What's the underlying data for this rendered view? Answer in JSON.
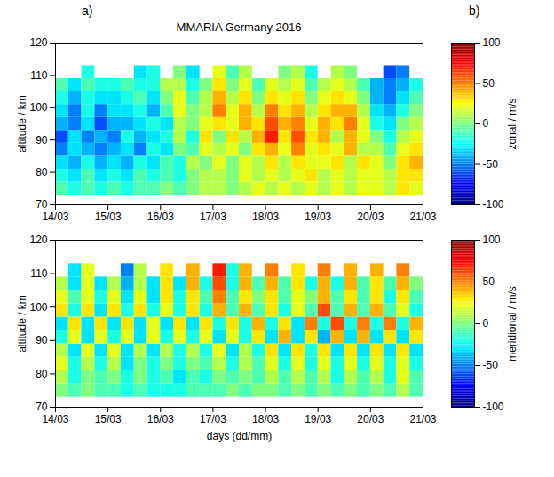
{
  "chart_data": [
    {
      "type": "heatmap",
      "title": "MMARIA Germany 2016",
      "annotations": [
        "a)",
        "b)"
      ],
      "ylabel": "altitude / km",
      "xlim": [
        14,
        21
      ],
      "xticks": [
        {
          "value": 14,
          "label": "14/03"
        },
        {
          "value": 15,
          "label": "15/03"
        },
        {
          "value": 16,
          "label": "16/03"
        },
        {
          "value": 17,
          "label": "17/03"
        },
        {
          "value": 18,
          "label": "18/03"
        },
        {
          "value": 19,
          "label": "19/03"
        },
        {
          "value": 20,
          "label": "20/03"
        },
        {
          "value": 21,
          "label": "21/03"
        }
      ],
      "ylim": [
        70,
        120
      ],
      "yticks": [
        70,
        80,
        90,
        100,
        110,
        120
      ],
      "x_edges": [
        14,
        14.25,
        14.5,
        14.75,
        15,
        15.25,
        15.5,
        15.75,
        16,
        16.25,
        16.5,
        16.75,
        17,
        17.25,
        17.5,
        17.75,
        18,
        18.25,
        18.5,
        18.75,
        19,
        19.25,
        19.5,
        19.75,
        20,
        20.25,
        20.5,
        20.75,
        21
      ],
      "y_edges": [
        73,
        77,
        81,
        85,
        89,
        93,
        97,
        101,
        105,
        109,
        113
      ],
      "cells": [
        [
          -10,
          -20,
          -10,
          -20,
          -10,
          -20,
          -10,
          -10,
          0,
          -10,
          0,
          10,
          10,
          0,
          10,
          20,
          10,
          20,
          10,
          20,
          10,
          20,
          10,
          20,
          20,
          10,
          30,
          20
        ],
        [
          -20,
          -30,
          -10,
          -30,
          -20,
          -30,
          -10,
          -20,
          -10,
          -20,
          0,
          10,
          10,
          0,
          20,
          10,
          20,
          10,
          20,
          30,
          10,
          20,
          10,
          20,
          20,
          10,
          30,
          30
        ],
        [
          -30,
          -40,
          -20,
          -40,
          -30,
          -40,
          -20,
          -30,
          -10,
          -20,
          10,
          0,
          20,
          0,
          20,
          10,
          30,
          10,
          30,
          20,
          20,
          30,
          10,
          30,
          20,
          0,
          30,
          40
        ],
        [
          -50,
          -30,
          -40,
          -50,
          -40,
          -30,
          -50,
          -20,
          -30,
          0,
          -10,
          20,
          10,
          20,
          0,
          30,
          40,
          20,
          50,
          20,
          30,
          20,
          40,
          10,
          10,
          -10,
          20,
          30
        ],
        [
          -60,
          -30,
          -50,
          -40,
          -50,
          -20,
          -40,
          -30,
          -20,
          10,
          -20,
          30,
          0,
          30,
          10,
          40,
          70,
          30,
          60,
          30,
          40,
          10,
          40,
          20,
          0,
          -20,
          10,
          20
        ],
        [
          -40,
          -50,
          -30,
          -60,
          -40,
          -40,
          -30,
          -20,
          -30,
          10,
          0,
          20,
          30,
          20,
          40,
          30,
          60,
          40,
          50,
          20,
          40,
          30,
          50,
          20,
          -20,
          -30,
          0,
          10
        ],
        [
          -30,
          -50,
          -20,
          -50,
          -30,
          -30,
          -20,
          -40,
          -10,
          20,
          0,
          10,
          50,
          20,
          40,
          10,
          50,
          30,
          40,
          10,
          30,
          40,
          40,
          10,
          -30,
          -40,
          -20,
          0
        ],
        [
          -20,
          -40,
          -20,
          -30,
          -30,
          -20,
          -10,
          -30,
          0,
          20,
          -10,
          10,
          40,
          10,
          30,
          0,
          30,
          20,
          30,
          0,
          20,
          30,
          20,
          0,
          -40,
          -50,
          -30,
          -10
        ],
        [
          -10,
          -30,
          -10,
          -20,
          -20,
          -10,
          -20,
          -20,
          10,
          10,
          -20,
          0,
          30,
          0,
          20,
          -10,
          20,
          10,
          20,
          -10,
          10,
          20,
          10,
          -10,
          -40,
          -50,
          -40,
          -20
        ],
        [
          null,
          null,
          -20,
          null,
          null,
          null,
          -30,
          -20,
          null,
          0,
          -30,
          null,
          20,
          -10,
          10,
          null,
          null,
          0,
          10,
          -20,
          null,
          10,
          0,
          null,
          null,
          -60,
          -50,
          null
        ]
      ],
      "color_range": [
        -100,
        100
      ],
      "color_ticks": [
        -100,
        -50,
        0,
        50,
        100
      ],
      "color_label": "zonal / m/s"
    },
    {
      "type": "heatmap",
      "xlabel": "days (dd/mm)",
      "ylabel": "altitude / km",
      "xlim": [
        14,
        21
      ],
      "xticks": [
        {
          "value": 14,
          "label": "14/03"
        },
        {
          "value": 15,
          "label": "15/03"
        },
        {
          "value": 16,
          "label": "16/03"
        },
        {
          "value": 17,
          "label": "17/03"
        },
        {
          "value": 18,
          "label": "18/03"
        },
        {
          "value": 19,
          "label": "19/03"
        },
        {
          "value": 20,
          "label": "20/03"
        },
        {
          "value": 21,
          "label": "21/03"
        }
      ],
      "ylim": [
        70,
        120
      ],
      "yticks": [
        70,
        80,
        90,
        100,
        110,
        120
      ],
      "x_edges": [
        14,
        14.25,
        14.5,
        14.75,
        15,
        15.25,
        15.5,
        15.75,
        16,
        16.25,
        16.5,
        16.75,
        17,
        17.25,
        17.5,
        17.75,
        18,
        18.25,
        18.5,
        18.75,
        19,
        19.25,
        19.5,
        19.75,
        20,
        20.25,
        20.5,
        20.75,
        21
      ],
      "y_edges": [
        73,
        77,
        81,
        85,
        89,
        93,
        97,
        101,
        105,
        109,
        113
      ],
      "cells": [
        [
          0,
          -10,
          0,
          -10,
          -10,
          -20,
          -10,
          -20,
          -20,
          -20,
          -10,
          -10,
          -10,
          0,
          -10,
          0,
          0,
          -10,
          0,
          -10,
          0,
          -10,
          0,
          -10,
          0,
          -10,
          10,
          -10
        ],
        [
          10,
          -20,
          0,
          -10,
          0,
          -20,
          0,
          -20,
          -10,
          -30,
          -10,
          -20,
          0,
          -10,
          0,
          -10,
          10,
          -10,
          10,
          -10,
          10,
          -20,
          10,
          -10,
          10,
          -20,
          20,
          -10
        ],
        [
          20,
          -20,
          10,
          -20,
          10,
          -30,
          0,
          -20,
          0,
          -20,
          0,
          -10,
          10,
          -20,
          10,
          -10,
          20,
          -20,
          20,
          -20,
          20,
          -20,
          20,
          -20,
          20,
          -20,
          20,
          -20
        ],
        [
          10,
          -30,
          20,
          -30,
          20,
          -30,
          10,
          -30,
          10,
          -20,
          10,
          -20,
          20,
          -30,
          10,
          -20,
          30,
          -30,
          30,
          -20,
          30,
          -30,
          30,
          -30,
          30,
          -30,
          30,
          -30
        ],
        [
          -20,
          20,
          -30,
          20,
          -20,
          20,
          -30,
          20,
          -20,
          20,
          -20,
          20,
          -30,
          20,
          -20,
          30,
          -30,
          40,
          -30,
          30,
          -40,
          40,
          -30,
          40,
          -30,
          30,
          -30,
          30
        ],
        [
          -30,
          30,
          -30,
          30,
          -30,
          30,
          -30,
          20,
          -30,
          30,
          -30,
          30,
          -20,
          30,
          -20,
          40,
          -20,
          30,
          -30,
          50,
          -20,
          60,
          -20,
          50,
          -20,
          50,
          -20,
          40
        ],
        [
          30,
          -20,
          30,
          -30,
          30,
          -20,
          30,
          -20,
          20,
          -20,
          30,
          -20,
          40,
          -10,
          40,
          -10,
          30,
          -20,
          20,
          -10,
          60,
          -10,
          40,
          -10,
          40,
          -10,
          20,
          -20
        ],
        [
          20,
          -10,
          20,
          -20,
          20,
          -30,
          20,
          -30,
          30,
          -20,
          30,
          -10,
          50,
          -10,
          30,
          0,
          30,
          -10,
          20,
          0,
          40,
          -10,
          30,
          -10,
          30,
          -20,
          30,
          -10
        ],
        [
          10,
          -30,
          20,
          -30,
          10,
          -40,
          10,
          -30,
          30,
          -30,
          40,
          -20,
          60,
          -20,
          40,
          -10,
          40,
          -10,
          30,
          -20,
          40,
          -20,
          40,
          -10,
          30,
          -10,
          40,
          0
        ],
        [
          null,
          -30,
          20,
          null,
          null,
          -50,
          10,
          null,
          30,
          null,
          40,
          null,
          70,
          -20,
          40,
          null,
          50,
          null,
          30,
          null,
          50,
          null,
          40,
          null,
          40,
          null,
          50,
          null
        ]
      ],
      "color_range": [
        -100,
        100
      ],
      "color_ticks": [
        -100,
        -50,
        0,
        50,
        100
      ],
      "color_label": "meridional / m/s"
    }
  ]
}
